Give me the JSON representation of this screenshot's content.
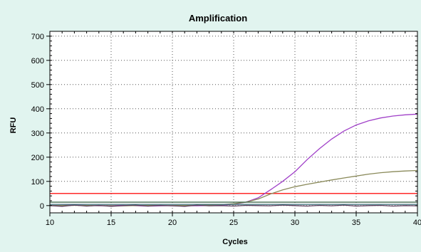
{
  "chart_data": {
    "type": "line",
    "title": "Amplification",
    "xlabel": "Cycles",
    "ylabel": "RFU",
    "xlim": [
      10,
      40
    ],
    "ylim": [
      -30,
      720
    ],
    "xticks": [
      10,
      15,
      20,
      25,
      30,
      35,
      40
    ],
    "yticks": [
      0,
      100,
      200,
      300,
      400,
      500,
      600,
      700
    ],
    "x_minor_step": 1,
    "y_minor_step": 20,
    "grid": true,
    "background_color": "#e1f4ef",
    "plot_background": "#ffffff",
    "threshold": {
      "y": 50,
      "color": "#ff2a2a"
    },
    "series": [
      {
        "color": "#a040c8",
        "x": [
          10,
          12,
          14,
          16,
          18,
          20,
          22,
          24,
          25,
          26,
          27,
          28,
          29,
          30,
          31,
          32,
          33,
          34,
          35,
          36,
          37,
          38,
          39,
          40
        ],
        "y": [
          0,
          2,
          -1,
          1,
          -2,
          0,
          -1,
          2,
          6,
          14,
          32,
          65,
          100,
          140,
          190,
          235,
          275,
          308,
          333,
          350,
          362,
          370,
          375,
          378
        ]
      },
      {
        "color": "#8a8a5a",
        "x": [
          10,
          12,
          14,
          16,
          18,
          20,
          22,
          24,
          25,
          26,
          27,
          28,
          29,
          30,
          31,
          32,
          33,
          34,
          35,
          36,
          37,
          38,
          39,
          40
        ],
        "y": [
          0,
          1,
          0,
          -1,
          1,
          0,
          1,
          4,
          8,
          14,
          27,
          48,
          65,
          78,
          88,
          97,
          106,
          114,
          122,
          130,
          136,
          140,
          143,
          145
        ]
      },
      {
        "color": "#5a3c5a",
        "x": [
          10,
          11,
          12,
          13,
          14,
          15,
          16,
          17,
          18,
          19,
          20,
          21,
          22,
          23,
          24,
          25,
          26,
          27,
          28,
          29,
          30,
          31,
          32,
          33,
          34,
          35,
          36,
          37,
          38,
          39,
          40
        ],
        "y": [
          0,
          -3,
          2,
          -2,
          1,
          -3,
          0,
          2,
          -2,
          1,
          -1,
          -3,
          2,
          -1,
          0,
          -2,
          1,
          0,
          -1,
          2,
          0,
          -2,
          1,
          -1,
          2,
          -2,
          0,
          1,
          -2,
          0,
          -1
        ]
      },
      {
        "color": "#2f5b3a",
        "x": [
          10,
          40
        ],
        "y": [
          14,
          14
        ]
      },
      {
        "color": "#3a6e78",
        "x": [
          10,
          40
        ],
        "y": [
          5,
          5
        ]
      }
    ]
  }
}
